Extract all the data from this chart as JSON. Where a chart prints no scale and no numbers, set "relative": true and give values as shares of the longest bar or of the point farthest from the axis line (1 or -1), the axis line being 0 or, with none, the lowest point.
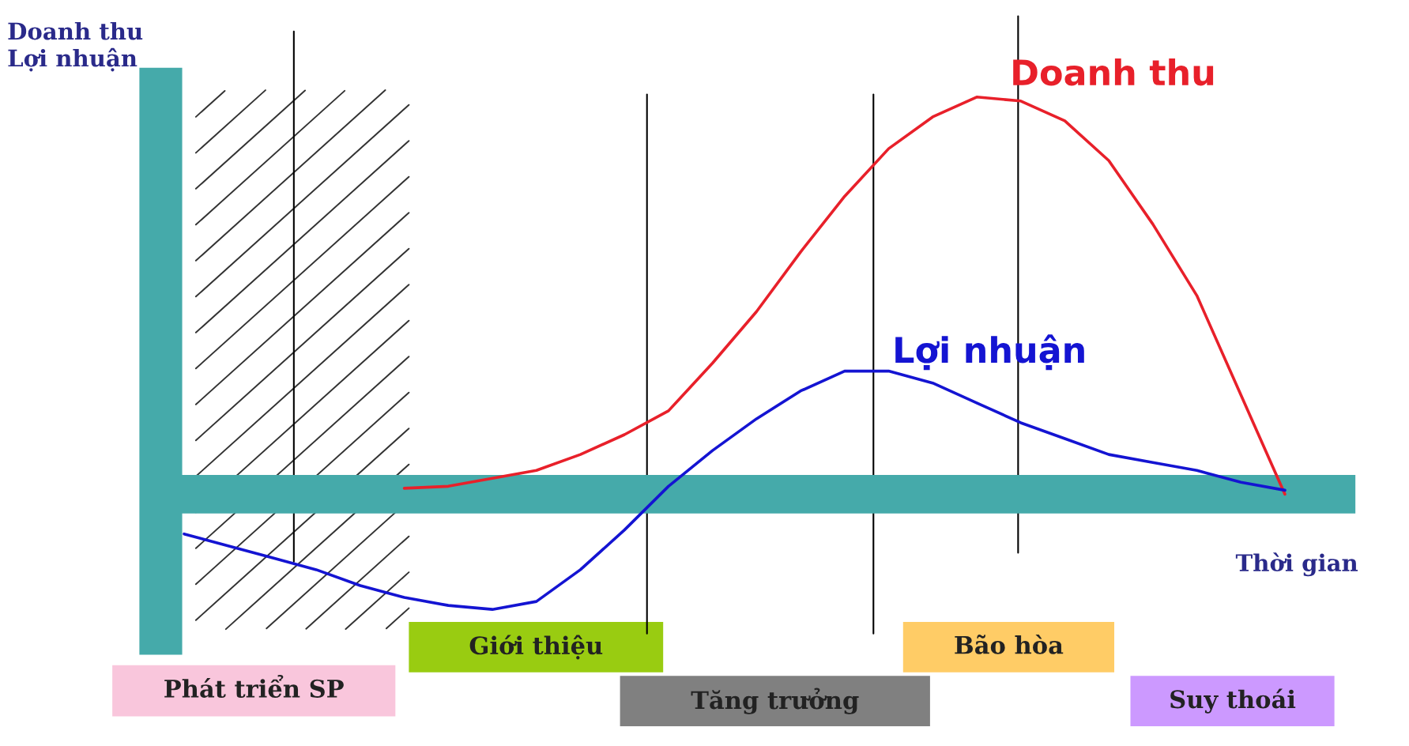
{
  "chart_data": {
    "type": "line",
    "relative": true,
    "ylabel": "Doanh thu\nLợi nhuận",
    "xlabel": "Thời gian",
    "categories": [
      null,
      null,
      null,
      null,
      null,
      null,
      null,
      null,
      null,
      null,
      null,
      null,
      null,
      null,
      null,
      null,
      null,
      null,
      null,
      null,
      null,
      null,
      null,
      null,
      null,
      null
    ],
    "series": [
      {
        "name": "Doanh thu",
        "color": "#e8202a",
        "values": [
          null,
          null,
          null,
          null,
          null,
          0.015,
          0.02,
          0.04,
          0.06,
          0.1,
          0.15,
          0.21,
          0.33,
          0.46,
          0.61,
          0.75,
          0.87,
          0.95,
          1.0,
          0.99,
          0.94,
          0.84,
          0.68,
          0.5,
          0.25,
          0.0
        ]
      },
      {
        "name": "Lợi nhuận",
        "color": "#1414d2",
        "values": [
          -0.1,
          -0.13,
          -0.16,
          -0.19,
          -0.23,
          -0.26,
          -0.28,
          -0.29,
          -0.27,
          -0.19,
          -0.09,
          0.02,
          0.11,
          0.19,
          0.26,
          0.31,
          0.31,
          0.28,
          0.23,
          0.18,
          0.14,
          0.1,
          0.08,
          0.06,
          0.03,
          0.01
        ]
      }
    ],
    "ref_lines": [
      {
        "axis": "y",
        "value": 0,
        "color": "#45aaaa"
      }
    ],
    "marker": "none",
    "line_style": "solid",
    "legend": false,
    "grid": false,
    "annotations": [
      "Phát triển SP",
      "Giới thiệu",
      "Tăng trưởng",
      "Bão hòa",
      "Suy thoái"
    ]
  }
}
